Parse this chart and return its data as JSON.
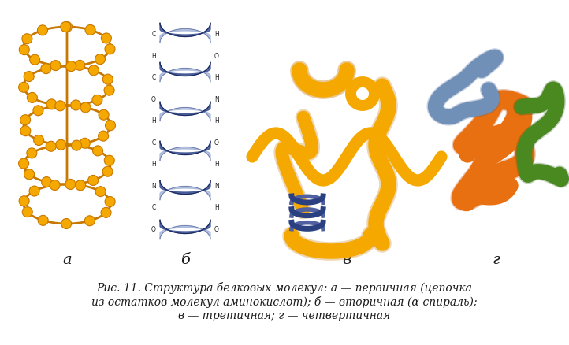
{
  "title_bold": "Рис. 11.",
  "title_italic": " Структура белковых молекул: а — первичная (цепочка",
  "line2": "из остатков молекул аминокислот); б — вторичная (α-спираль);",
  "line3": "в — третичная; г — четвертичная",
  "label_a": "а",
  "label_b": "б",
  "label_v": "в",
  "label_g": "г",
  "bg_color": "#ffffff",
  "text_color": "#1a1a1a",
  "fig_width": 7.22,
  "fig_height": 4.39,
  "dpi": 100,
  "gold": "#F5A800",
  "gold_dark": "#C87800",
  "gold_edge": "#A06000",
  "blue_helix": "#4a5fa0",
  "blue_light": "#8090c8",
  "orange": "#E87010",
  "green": "#4a8820",
  "blue_blob": "#7090b8"
}
